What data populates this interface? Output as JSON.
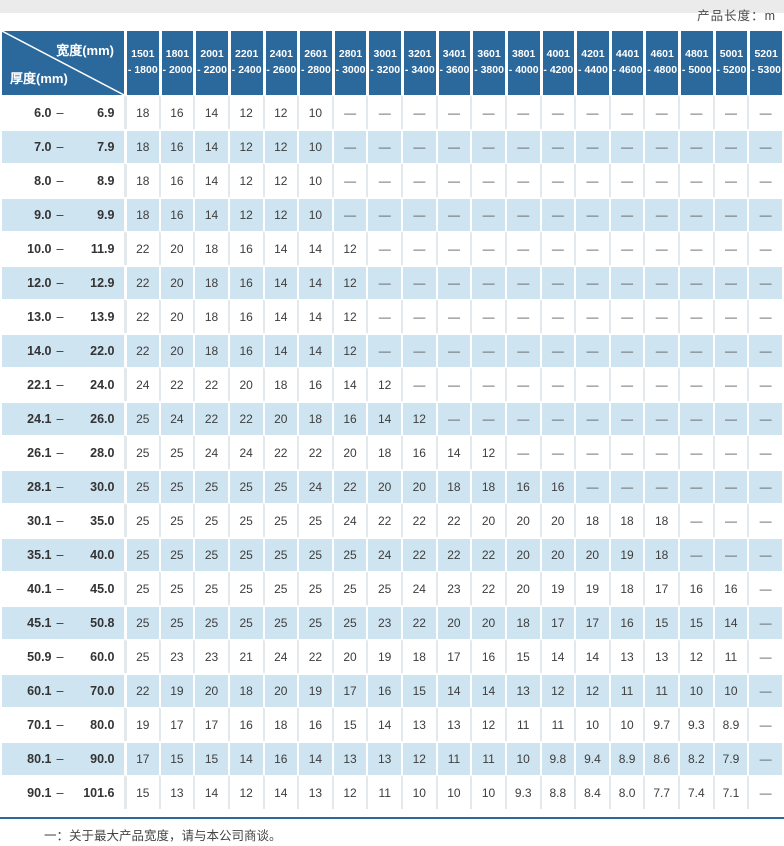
{
  "page": {
    "top_right_label": "产品长度：m"
  },
  "colors": {
    "header_blue": "#2b689b",
    "stripe_blue": "#cfe4f1",
    "rule_blue": "#2b689b",
    "top_band_gray": "#ebebeb"
  },
  "table": {
    "corner": {
      "width_label": "宽度(mm)",
      "thickness_label": "厚度(mm)"
    },
    "range_dash": "–",
    "dash": "—",
    "width_columns": [
      {
        "line1": "1501",
        "line2": "- 1800"
      },
      {
        "line1": "1801",
        "line2": "- 2000"
      },
      {
        "line1": "2001",
        "line2": "- 2200"
      },
      {
        "line1": "2201",
        "line2": "- 2400"
      },
      {
        "line1": "2401",
        "line2": "- 2600"
      },
      {
        "line1": "2601",
        "line2": "- 2800"
      },
      {
        "line1": "2801",
        "line2": "- 3000"
      },
      {
        "line1": "3001",
        "line2": "- 3200"
      },
      {
        "line1": "3201",
        "line2": "- 3400"
      },
      {
        "line1": "3401",
        "line2": "- 3600"
      },
      {
        "line1": "3601",
        "line2": "- 3800"
      },
      {
        "line1": "3801",
        "line2": "- 4000"
      },
      {
        "line1": "4001",
        "line2": "- 4200"
      },
      {
        "line1": "4201",
        "line2": "- 4400"
      },
      {
        "line1": "4401",
        "line2": "- 4600"
      },
      {
        "line1": "4601",
        "line2": "- 4800"
      },
      {
        "line1": "4801",
        "line2": "- 5000"
      },
      {
        "line1": "5001",
        "line2": "- 5200"
      },
      {
        "line1": "5201",
        "line2": "- 5300"
      }
    ],
    "rows": [
      {
        "lo": "6.0",
        "hi": "6.9",
        "values": [
          "18",
          "16",
          "14",
          "12",
          "12",
          "10",
          "—",
          "—",
          "—",
          "—",
          "—",
          "—",
          "—",
          "—",
          "—",
          "—",
          "—",
          "—",
          "—"
        ]
      },
      {
        "lo": "7.0",
        "hi": "7.9",
        "values": [
          "18",
          "16",
          "14",
          "12",
          "12",
          "10",
          "—",
          "—",
          "—",
          "—",
          "—",
          "—",
          "—",
          "—",
          "—",
          "—",
          "—",
          "—",
          "—"
        ]
      },
      {
        "lo": "8.0",
        "hi": "8.9",
        "values": [
          "18",
          "16",
          "14",
          "12",
          "12",
          "10",
          "—",
          "—",
          "—",
          "—",
          "—",
          "—",
          "—",
          "—",
          "—",
          "—",
          "—",
          "—",
          "—"
        ]
      },
      {
        "lo": "9.0",
        "hi": "9.9",
        "values": [
          "18",
          "16",
          "14",
          "12",
          "12",
          "10",
          "—",
          "—",
          "—",
          "—",
          "—",
          "—",
          "—",
          "—",
          "—",
          "—",
          "—",
          "—",
          "—"
        ]
      },
      {
        "lo": "10.0",
        "hi": "11.9",
        "values": [
          "22",
          "20",
          "18",
          "16",
          "14",
          "14",
          "12",
          "—",
          "—",
          "—",
          "—",
          "—",
          "—",
          "—",
          "—",
          "—",
          "—",
          "—",
          "—"
        ]
      },
      {
        "lo": "12.0",
        "hi": "12.9",
        "values": [
          "22",
          "20",
          "18",
          "16",
          "14",
          "14",
          "12",
          "—",
          "—",
          "—",
          "—",
          "—",
          "—",
          "—",
          "—",
          "—",
          "—",
          "—",
          "—"
        ]
      },
      {
        "lo": "13.0",
        "hi": "13.9",
        "values": [
          "22",
          "20",
          "18",
          "16",
          "14",
          "14",
          "12",
          "—",
          "—",
          "—",
          "—",
          "—",
          "—",
          "—",
          "—",
          "—",
          "—",
          "—",
          "—"
        ]
      },
      {
        "lo": "14.0",
        "hi": "22.0",
        "values": [
          "22",
          "20",
          "18",
          "16",
          "14",
          "14",
          "12",
          "—",
          "—",
          "—",
          "—",
          "—",
          "—",
          "—",
          "—",
          "—",
          "—",
          "—",
          "—"
        ]
      },
      {
        "lo": "22.1",
        "hi": "24.0",
        "values": [
          "24",
          "22",
          "22",
          "20",
          "18",
          "16",
          "14",
          "12",
          "—",
          "—",
          "—",
          "—",
          "—",
          "—",
          "—",
          "—",
          "—",
          "—",
          "—"
        ]
      },
      {
        "lo": "24.1",
        "hi": "26.0",
        "values": [
          "25",
          "24",
          "22",
          "22",
          "20",
          "18",
          "16",
          "14",
          "12",
          "—",
          "—",
          "—",
          "—",
          "—",
          "—",
          "—",
          "—",
          "—",
          "—"
        ]
      },
      {
        "lo": "26.1",
        "hi": "28.0",
        "values": [
          "25",
          "25",
          "24",
          "24",
          "22",
          "22",
          "20",
          "18",
          "16",
          "14",
          "12",
          "—",
          "—",
          "—",
          "—",
          "—",
          "—",
          "—",
          "—"
        ]
      },
      {
        "lo": "28.1",
        "hi": "30.0",
        "values": [
          "25",
          "25",
          "25",
          "25",
          "25",
          "24",
          "22",
          "20",
          "20",
          "18",
          "18",
          "16",
          "16",
          "—",
          "—",
          "—",
          "—",
          "—",
          "—"
        ]
      },
      {
        "lo": "30.1",
        "hi": "35.0",
        "values": [
          "25",
          "25",
          "25",
          "25",
          "25",
          "25",
          "24",
          "22",
          "22",
          "22",
          "20",
          "20",
          "20",
          "18",
          "18",
          "18",
          "—",
          "—",
          "—"
        ]
      },
      {
        "lo": "35.1",
        "hi": "40.0",
        "values": [
          "25",
          "25",
          "25",
          "25",
          "25",
          "25",
          "25",
          "24",
          "22",
          "22",
          "22",
          "20",
          "20",
          "20",
          "19",
          "18",
          "—",
          "—",
          "—"
        ]
      },
      {
        "lo": "40.1",
        "hi": "45.0",
        "values": [
          "25",
          "25",
          "25",
          "25",
          "25",
          "25",
          "25",
          "25",
          "24",
          "23",
          "22",
          "20",
          "19",
          "19",
          "18",
          "17",
          "16",
          "16",
          "—"
        ]
      },
      {
        "lo": "45.1",
        "hi": "50.8",
        "values": [
          "25",
          "25",
          "25",
          "25",
          "25",
          "25",
          "25",
          "23",
          "22",
          "20",
          "20",
          "18",
          "17",
          "17",
          "16",
          "15",
          "15",
          "14",
          "—"
        ]
      },
      {
        "lo": "50.9",
        "hi": "60.0",
        "values": [
          "25",
          "23",
          "23",
          "21",
          "24",
          "22",
          "20",
          "19",
          "18",
          "17",
          "16",
          "15",
          "14",
          "14",
          "13",
          "13",
          "12",
          "11",
          "—"
        ]
      },
      {
        "lo": "60.1",
        "hi": "70.0",
        "values": [
          "22",
          "19",
          "20",
          "18",
          "20",
          "19",
          "17",
          "16",
          "15",
          "14",
          "14",
          "13",
          "12",
          "12",
          "11",
          "11",
          "10",
          "10",
          "—"
        ]
      },
      {
        "lo": "70.1",
        "hi": "80.0",
        "values": [
          "19",
          "17",
          "17",
          "16",
          "18",
          "16",
          "15",
          "14",
          "13",
          "13",
          "12",
          "11",
          "11",
          "10",
          "10",
          "9.7",
          "9.3",
          "8.9",
          "—"
        ]
      },
      {
        "lo": "80.1",
        "hi": "90.0",
        "values": [
          "17",
          "15",
          "15",
          "14",
          "16",
          "14",
          "13",
          "13",
          "12",
          "11",
          "11",
          "10",
          "9.8",
          "9.4",
          "8.9",
          "8.6",
          "8.2",
          "7.9",
          "—"
        ]
      },
      {
        "lo": "90.1",
        "hi": "101.6",
        "values": [
          "15",
          "13",
          "14",
          "12",
          "14",
          "13",
          "12",
          "11",
          "10",
          "10",
          "10",
          "9.3",
          "8.8",
          "8.4",
          "8.0",
          "7.7",
          "7.4",
          "7.1",
          "—"
        ]
      }
    ],
    "footnote": "一：关于最大产品宽度，请与本公司商谈。"
  }
}
